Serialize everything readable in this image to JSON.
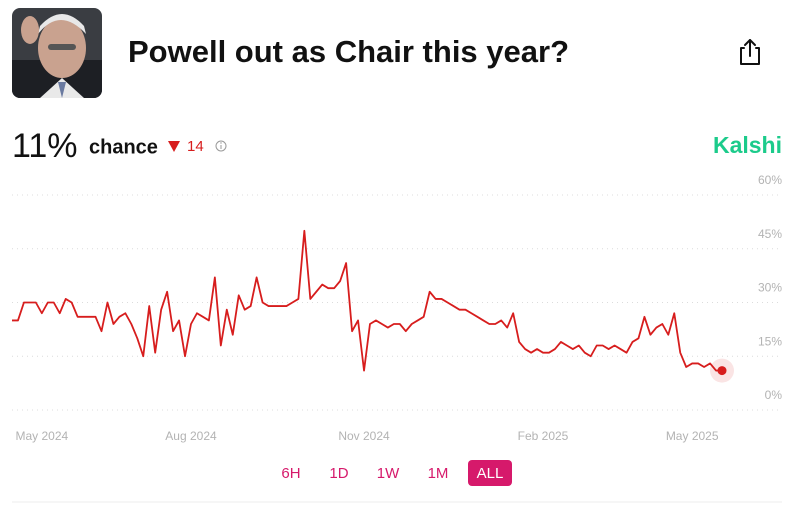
{
  "header": {
    "title": "Powell out as Chair this year?"
  },
  "summary": {
    "probability": "11%",
    "label": "chance",
    "change": "14",
    "source": "Kalshi"
  },
  "chart_data": {
    "type": "line",
    "categories": [
      null,
      null,
      null,
      null,
      null,
      "May 2024",
      null,
      null,
      null,
      null,
      null,
      null,
      null,
      null,
      null,
      null,
      null,
      null,
      null,
      null,
      null,
      null,
      null,
      null,
      null,
      null,
      null,
      null,
      null,
      null,
      "Aug 2024",
      null,
      null,
      null,
      null,
      null,
      null,
      null,
      null,
      null,
      null,
      null,
      null,
      null,
      null,
      null,
      null,
      null,
      null,
      null,
      null,
      null,
      null,
      null,
      null,
      null,
      null,
      null,
      null,
      "Nov 2024",
      null,
      null,
      null,
      null,
      null,
      null,
      null,
      null,
      null,
      null,
      null,
      null,
      null,
      null,
      null,
      null,
      null,
      null,
      null,
      null,
      null,
      null,
      null,
      null,
      null,
      null,
      null,
      null,
      null,
      "Feb 2025",
      null,
      null,
      null,
      null,
      null,
      null,
      null,
      null,
      null,
      null,
      null,
      null,
      null,
      null,
      null,
      null,
      null,
      null,
      null,
      null,
      null,
      null,
      null,
      null,
      "May 2025",
      null,
      null,
      null,
      null,
      null
    ],
    "series": [
      {
        "name": "Yes",
        "color": "#d71d1d",
        "values": [
          25,
          25,
          30,
          30,
          30,
          27,
          30,
          30,
          27,
          31,
          30,
          26,
          26,
          26,
          26,
          22,
          30,
          24,
          26,
          27,
          24,
          20,
          15,
          29,
          16,
          28,
          33,
          22,
          25,
          15,
          24,
          27,
          26,
          25,
          37,
          18,
          28,
          21,
          32,
          28,
          29,
          37,
          30,
          29,
          29,
          29,
          29,
          30,
          31,
          50,
          31,
          33,
          35,
          34,
          34,
          36,
          41,
          22,
          25,
          11,
          24,
          25,
          24,
          23,
          24,
          24,
          22,
          24,
          25,
          26,
          33,
          31,
          31,
          30,
          29,
          28,
          28,
          27,
          26,
          25,
          24,
          24,
          25,
          23,
          27,
          19,
          17,
          16,
          17,
          16,
          16,
          17,
          19,
          18,
          17,
          18,
          16,
          15,
          18,
          18,
          17,
          18,
          17,
          16,
          19,
          20,
          26,
          21,
          23,
          24,
          21,
          27,
          16,
          12,
          13,
          13,
          12,
          13,
          11,
          11
        ]
      }
    ],
    "ylim": [
      0,
      60
    ],
    "yticks": [
      {
        "value": 0,
        "label": "0%"
      },
      {
        "value": 15,
        "label": "15%"
      },
      {
        "value": 30,
        "label": "30%"
      },
      {
        "value": 45,
        "label": "45%"
      },
      {
        "value": 60,
        "label": "60%"
      }
    ],
    "grid": true
  },
  "range_buttons": [
    "6H",
    "1D",
    "1W",
    "1M",
    "ALL"
  ],
  "active_range": "ALL"
}
